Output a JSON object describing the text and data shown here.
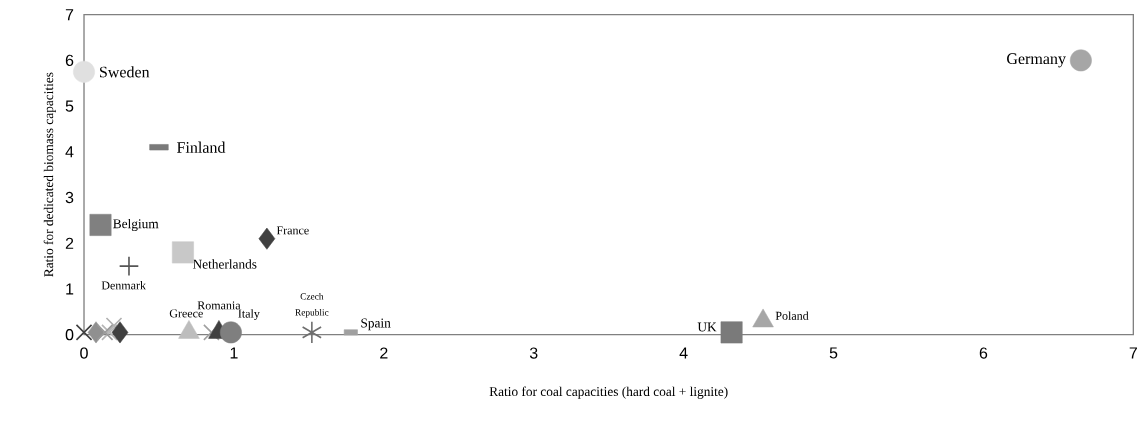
{
  "chart_data": {
    "type": "scatter",
    "xlabel": "Ratio for coal capacities (hard coal + lignite)",
    "ylabel": "Ratio for dedicated biomass capacities",
    "xlim": [
      0,
      7
    ],
    "ylim": [
      0,
      7
    ],
    "xticks": [
      0,
      1,
      2,
      3,
      4,
      5,
      6,
      7
    ],
    "yticks": [
      0,
      1,
      2,
      3,
      4,
      5,
      6,
      7
    ],
    "grid": false,
    "series": [
      {
        "name": "Sweden",
        "color": "#e0e0e0",
        "marker": "circle",
        "x": [
          0
        ],
        "values": [
          5.75
        ]
      },
      {
        "name": "Germany",
        "color": "#a6a6a6",
        "marker": "circle",
        "x": [
          6.65
        ],
        "values": [
          6
        ]
      },
      {
        "name": "Finland",
        "color": "#7a7a7a",
        "marker": "square",
        "x": [
          0.5
        ],
        "values": [
          4.1
        ]
      },
      {
        "name": "Belgium",
        "color": "#808080",
        "marker": "square",
        "x": [
          0.11
        ],
        "values": [
          2.4
        ]
      },
      {
        "name": "Netherlands",
        "color": "#c8c8c8",
        "marker": "square",
        "x": [
          0.66
        ],
        "values": [
          1.8
        ]
      },
      {
        "name": "France",
        "color": "#404040",
        "marker": "diamond",
        "x": [
          1.22
        ],
        "values": [
          2.1
        ]
      },
      {
        "name": "Denmark",
        "color": "#555555",
        "marker": "cross",
        "x": [
          0.3
        ],
        "values": [
          1.5
        ]
      },
      {
        "name": "Greece",
        "color": "#bdbdbd",
        "marker": "triangle",
        "x": [
          0.7
        ],
        "values": [
          0.05
        ]
      },
      {
        "color": "#a0a0a0",
        "marker": "cross",
        "x": [
          0.85
        ],
        "values": [
          0.05
        ]
      },
      {
        "name": "Romania",
        "color": "#404040",
        "marker": "triangle",
        "x": [
          0.9
        ],
        "values": [
          0.05
        ]
      },
      {
        "name": "Italy",
        "color": "#7f7f7f",
        "marker": "circle",
        "x": [
          0.98
        ],
        "values": [
          0.05
        ]
      },
      {
        "name": "Czech Republic",
        "color": "#6e6e6e",
        "marker": "cross",
        "x": [
          1.52
        ],
        "values": [
          0.05
        ]
      },
      {
        "name": "Spain",
        "color": "#a0a0a0",
        "marker": "square",
        "x": [
          1.78
        ],
        "values": [
          0.05
        ]
      },
      {
        "name": "UK",
        "color": "#7a7a7a",
        "marker": "square",
        "x": [
          4.32
        ],
        "values": [
          0.05
        ]
      },
      {
        "name": "Poland",
        "color": "#a6a6a6",
        "marker": "triangle",
        "x": [
          4.53
        ],
        "values": [
          0.3
        ]
      },
      {
        "color": "#404040",
        "marker": "cross",
        "x": [
          0
        ],
        "values": [
          0.05
        ]
      },
      {
        "color": "#909090",
        "marker": "diamond",
        "x": [
          0.08
        ],
        "values": [
          0.05
        ]
      },
      {
        "color": "#b0b0b0",
        "marker": "cross",
        "x": [
          0.2
        ],
        "values": [
          0.2
        ]
      },
      {
        "color": "#b5b5b5",
        "marker": "cross",
        "x": [
          0.17
        ],
        "values": [
          0.05
        ]
      },
      {
        "color": "#9a9a9a",
        "marker": "cross",
        "x": [
          0.14
        ],
        "values": [
          0.05
        ]
      },
      {
        "color": "#404040",
        "marker": "diamond",
        "x": [
          0.24
        ],
        "values": [
          0.05
        ]
      }
    ]
  }
}
